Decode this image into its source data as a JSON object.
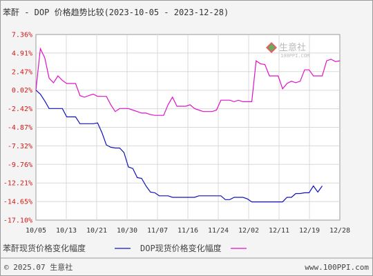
{
  "chart_data": {
    "type": "line",
    "title": "苯酐 - DOP 价格趋势比较(2023-10-05 - 2023-12-28)",
    "y_ticks": [
      "7.36%",
      "4.91%",
      "2.47%",
      "0.02%",
      "-2.42%",
      "-4.87%",
      "-7.32%",
      "-9.76%",
      "-12.21%",
      "-14.65%",
      "-17.10%"
    ],
    "ylim": [
      -17.1,
      7.36
    ],
    "x_ticks": [
      "10/05",
      "10/13",
      "10/21",
      "10/30",
      "11/07",
      "11/16",
      "11/24",
      "12/02",
      "12/11",
      "12/19",
      "12/28"
    ],
    "grid": true,
    "legend_position": "bottom",
    "series": [
      {
        "name": "苯酐现货价格变化幅度",
        "color": "#1010c0",
        "points": [
          [
            0,
            0.02
          ],
          [
            1,
            -0.5
          ],
          [
            2,
            -1.4
          ],
          [
            3,
            -2.4
          ],
          [
            4,
            -2.4
          ],
          [
            5,
            -2.4
          ],
          [
            6,
            -2.4
          ],
          [
            7,
            -3.5
          ],
          [
            8,
            -3.5
          ],
          [
            9,
            -3.5
          ],
          [
            10,
            -4.4
          ],
          [
            11,
            -4.4
          ],
          [
            12,
            -4.4
          ],
          [
            13,
            -4.4
          ],
          [
            14,
            -4.3
          ],
          [
            15,
            -5.6
          ],
          [
            16,
            -7.2
          ],
          [
            17,
            -7.5
          ],
          [
            18,
            -7.6
          ],
          [
            19,
            -7.6
          ],
          [
            20,
            -8.2
          ],
          [
            21,
            -10.1
          ],
          [
            22,
            -10.3
          ],
          [
            23,
            -11.5
          ],
          [
            24,
            -11.6
          ],
          [
            25,
            -12.6
          ],
          [
            26,
            -13.4
          ],
          [
            27,
            -13.5
          ],
          [
            28,
            -13.9
          ],
          [
            29,
            -13.9
          ],
          [
            30,
            -13.9
          ],
          [
            31,
            -14.1
          ],
          [
            32,
            -14.1
          ],
          [
            33,
            -14.1
          ],
          [
            34,
            -14.1
          ],
          [
            35,
            -14.1
          ],
          [
            36,
            -14.1
          ],
          [
            37,
            -13.9
          ],
          [
            38,
            -13.9
          ],
          [
            39,
            -13.9
          ],
          [
            40,
            -13.9
          ],
          [
            41,
            -13.9
          ],
          [
            42,
            -13.9
          ],
          [
            43,
            -14.4
          ],
          [
            44,
            -14.4
          ],
          [
            45,
            -14.1
          ],
          [
            46,
            -14.1
          ],
          [
            47,
            -14.1
          ],
          [
            48,
            -14.3
          ],
          [
            49,
            -14.7
          ],
          [
            50,
            -14.7
          ],
          [
            51,
            -14.7
          ],
          [
            52,
            -14.7
          ],
          [
            53,
            -14.7
          ],
          [
            54,
            -14.7
          ],
          [
            55,
            -14.7
          ],
          [
            56,
            -14.7
          ],
          [
            57,
            -14.1
          ],
          [
            58,
            -14.1
          ],
          [
            59,
            -13.6
          ],
          [
            60,
            -13.6
          ],
          [
            61,
            -13.5
          ],
          [
            62,
            -13.5
          ],
          [
            63,
            -12.6
          ]
        ]
      },
      {
        "name": "DOP现货价格变化幅度",
        "color": "#e010c8",
        "points": [
          [
            0,
            0.02
          ],
          [
            1,
            5.5
          ],
          [
            2,
            4.3
          ],
          [
            3,
            1.6
          ],
          [
            4,
            1.0
          ],
          [
            5,
            1.9
          ],
          [
            6,
            1.3
          ],
          [
            7,
            0.9
          ],
          [
            8,
            0.9
          ],
          [
            9,
            0.9
          ],
          [
            10,
            -0.7
          ],
          [
            11,
            -0.9
          ],
          [
            12,
            -0.7
          ],
          [
            13,
            -0.5
          ],
          [
            14,
            -0.8
          ],
          [
            15,
            -0.8
          ],
          [
            16,
            -0.8
          ],
          [
            17,
            -1.9
          ],
          [
            18,
            -2.8
          ],
          [
            19,
            -2.4
          ],
          [
            20,
            -2.4
          ],
          [
            21,
            -2.4
          ],
          [
            22,
            -2.6
          ],
          [
            23,
            -2.8
          ],
          [
            24,
            -3.0
          ],
          [
            25,
            -3.0
          ],
          [
            26,
            -3.2
          ],
          [
            27,
            -3.3
          ],
          [
            28,
            -3.3
          ],
          [
            29,
            -3.3
          ],
          [
            30,
            -1.9
          ],
          [
            31,
            -0.9
          ],
          [
            32,
            -2.1
          ],
          [
            33,
            -2.1
          ],
          [
            34,
            -2.1
          ],
          [
            35,
            -1.9
          ],
          [
            36,
            -2.4
          ],
          [
            37,
            -2.6
          ],
          [
            38,
            -2.8
          ],
          [
            39,
            -2.8
          ],
          [
            40,
            -2.8
          ],
          [
            41,
            -2.6
          ],
          [
            42,
            -1.3
          ],
          [
            43,
            -1.3
          ],
          [
            44,
            -1.3
          ],
          [
            45,
            -1.5
          ],
          [
            46,
            -1.3
          ],
          [
            47,
            -1.5
          ],
          [
            48,
            -1.5
          ],
          [
            49,
            -1.5
          ],
          [
            50,
            3.9
          ],
          [
            51,
            3.5
          ],
          [
            52,
            3.4
          ],
          [
            53,
            1.9
          ],
          [
            54,
            1.9
          ],
          [
            55,
            1.9
          ],
          [
            56,
            0.2
          ],
          [
            57,
            0.9
          ],
          [
            58,
            1.2
          ],
          [
            59,
            1.0
          ],
          [
            60,
            1.2
          ],
          [
            61,
            2.7
          ],
          [
            62,
            2.7
          ],
          [
            63,
            1.9
          ]
        ]
      }
    ],
    "x_count": 64,
    "tail_extension": [
      [
        64,
        1.9
      ],
      [
        65,
        1.9
      ],
      [
        66,
        3.9
      ],
      [
        67,
        4.1
      ],
      [
        68,
        3.8
      ],
      [
        69,
        3.9
      ]
    ],
    "blue_tail": [
      [
        64,
        -13.4
      ],
      [
        65,
        -12.6
      ]
    ]
  },
  "footer": {
    "copyright": "© 2025.07 生意社",
    "url": "www.100PPI.com"
  },
  "watermark": {
    "name": "生意社",
    "url": "100PPI.COM"
  }
}
